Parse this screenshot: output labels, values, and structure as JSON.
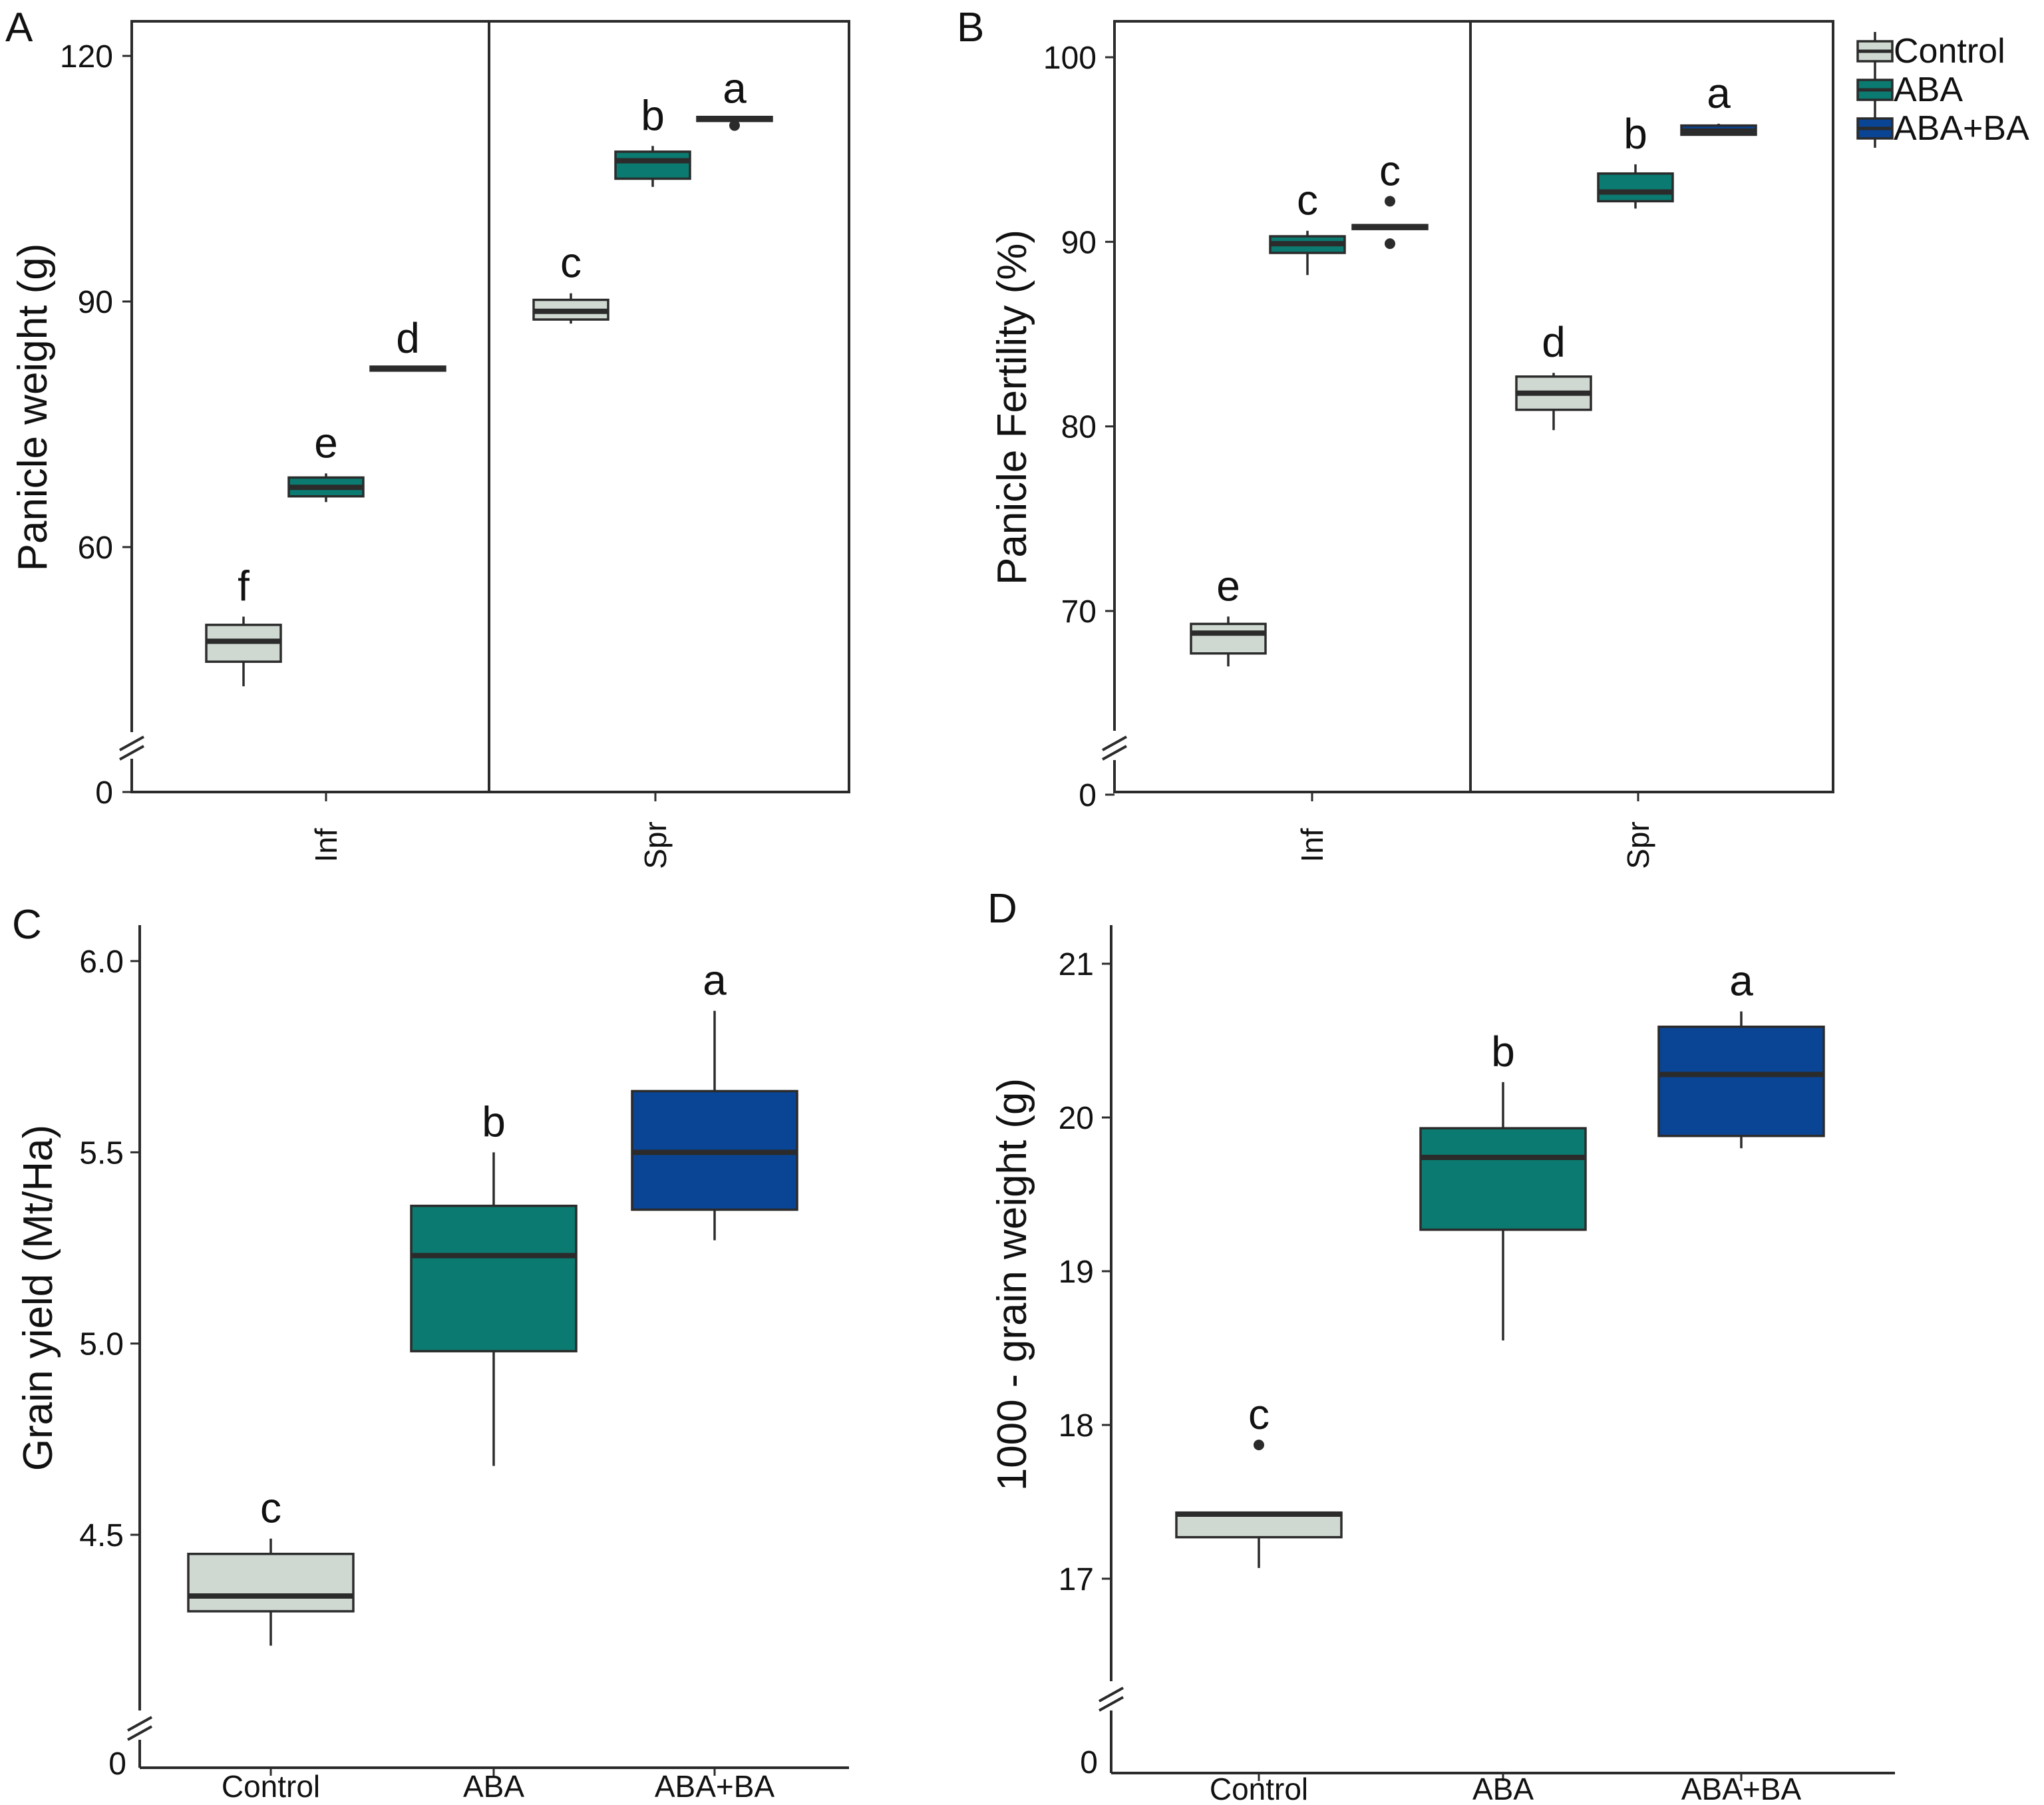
{
  "colors": {
    "Control": "#cfd9d2",
    "ABA": "#0b7a70",
    "ABA+BA": "#0a4595",
    "ink": "#2b2b2b"
  },
  "legend": {
    "items": [
      "Control",
      "ABA",
      "ABA+BA"
    ]
  },
  "chart_data": [
    {
      "panel": "A",
      "type": "box",
      "ylabel": "Panicle weight (g)",
      "ylim": [
        0,
        124
      ],
      "yticks": [
        0,
        60,
        90,
        120
      ],
      "axis_break": true,
      "facets": [
        "Inf",
        "Spr"
      ],
      "groups": [
        {
          "facet": "Inf",
          "treatment": "Control",
          "min": 43,
          "q1": 46,
          "median": 48.5,
          "q3": 50.5,
          "max": 51.5,
          "outliers": [],
          "letter": "f"
        },
        {
          "facet": "Inf",
          "treatment": "ABA",
          "min": 65.5,
          "q1": 66.2,
          "median": 67.3,
          "q3": 68.5,
          "max": 69,
          "outliers": [],
          "letter": "e"
        },
        {
          "facet": "Inf",
          "treatment": "ABA+BA",
          "min": 81.8,
          "q1": 81.8,
          "median": 81.8,
          "q3": 81.8,
          "max": 81.8,
          "outliers": [],
          "letter": "d"
        },
        {
          "facet": "Spr",
          "treatment": "Control",
          "min": 87.3,
          "q1": 87.8,
          "median": 88.8,
          "q3": 90.2,
          "max": 91,
          "outliers": [],
          "letter": "c"
        },
        {
          "facet": "Spr",
          "treatment": "ABA",
          "min": 104,
          "q1": 105,
          "median": 107.2,
          "q3": 108.3,
          "max": 109,
          "outliers": [],
          "letter": "b"
        },
        {
          "facet": "Spr",
          "treatment": "ABA+BA",
          "min": 112.3,
          "q1": 112.3,
          "median": 112.3,
          "q3": 112.3,
          "max": 112.3,
          "outliers": [
            111.5
          ],
          "letter": "a"
        }
      ]
    },
    {
      "panel": "B",
      "type": "box",
      "ylabel": "Panicle Fertility (%)",
      "ylim": [
        0,
        102
      ],
      "yticks": [
        0,
        70,
        80,
        90,
        100
      ],
      "axis_break": true,
      "facets": [
        "Inf",
        "Spr"
      ],
      "groups": [
        {
          "facet": "Inf",
          "treatment": "Control",
          "min": 67,
          "q1": 67.7,
          "median": 68.8,
          "q3": 69.3,
          "max": 69.7,
          "outliers": [],
          "letter": "e"
        },
        {
          "facet": "Inf",
          "treatment": "ABA",
          "min": 88.2,
          "q1": 89.4,
          "median": 89.9,
          "q3": 90.3,
          "max": 90.6,
          "outliers": [],
          "letter": "c"
        },
        {
          "facet": "Inf",
          "treatment": "ABA+BA",
          "min": 90.8,
          "q1": 90.8,
          "median": 90.8,
          "q3": 90.8,
          "max": 90.8,
          "outliers": [
            92.2,
            89.9
          ],
          "letter": "c"
        },
        {
          "facet": "Spr",
          "treatment": "Control",
          "min": 79.8,
          "q1": 80.9,
          "median": 81.8,
          "q3": 82.7,
          "max": 82.9,
          "outliers": [],
          "letter": "d"
        },
        {
          "facet": "Spr",
          "treatment": "ABA",
          "min": 91.8,
          "q1": 92.2,
          "median": 92.7,
          "q3": 93.7,
          "max": 94.2,
          "outliers": [],
          "letter": "b"
        },
        {
          "facet": "Spr",
          "treatment": "ABA+BA",
          "min": 95.8,
          "q1": 95.8,
          "median": 96,
          "q3": 96.3,
          "max": 96.4,
          "outliers": [],
          "letter": "a"
        }
      ]
    },
    {
      "panel": "C",
      "type": "box",
      "ylabel": "Grain yield (Mt/Ha)",
      "ylim": [
        4.0,
        6.0
      ],
      "yticks": [
        4.5,
        5.0,
        5.5,
        6.0
      ],
      "ytick_labels": [
        "4.5",
        "5.0",
        "5.5",
        "6.0"
      ],
      "axis_break": true,
      "zero_label": "0",
      "categories": [
        "Control",
        "ABA",
        "ABA+BA"
      ],
      "groups": [
        {
          "treatment": "Control",
          "min": 4.21,
          "q1": 4.3,
          "median": 4.34,
          "q3": 4.45,
          "max": 4.49,
          "outliers": [],
          "letter": "c"
        },
        {
          "treatment": "ABA",
          "min": 4.68,
          "q1": 4.98,
          "median": 5.23,
          "q3": 5.36,
          "max": 5.5,
          "outliers": [],
          "letter": "b"
        },
        {
          "treatment": "ABA+BA",
          "min": 5.27,
          "q1": 5.35,
          "median": 5.5,
          "q3": 5.66,
          "max": 5.87,
          "outliers": [],
          "letter": "a"
        }
      ]
    },
    {
      "panel": "D",
      "type": "box",
      "ylabel": "1000 - grain weight (g)",
      "ylim": [
        16.15,
        21.2
      ],
      "yticks": [
        17,
        18,
        19,
        20,
        21
      ],
      "axis_break": true,
      "zero_label": "0",
      "categories": [
        "Control",
        "ABA",
        "ABA+BA"
      ],
      "groups": [
        {
          "treatment": "Control",
          "min": 17.07,
          "q1": 17.27,
          "median": 17.42,
          "q3": 17.43,
          "max": 17.43,
          "outliers": [
            17.87
          ],
          "letter": "c"
        },
        {
          "treatment": "ABA",
          "min": 18.55,
          "q1": 19.27,
          "median": 19.74,
          "q3": 19.93,
          "max": 20.23,
          "outliers": [],
          "letter": "b"
        },
        {
          "treatment": "ABA+BA",
          "min": 19.8,
          "q1": 19.88,
          "median": 20.28,
          "q3": 20.59,
          "max": 20.69,
          "outliers": [],
          "letter": "a"
        }
      ]
    }
  ]
}
